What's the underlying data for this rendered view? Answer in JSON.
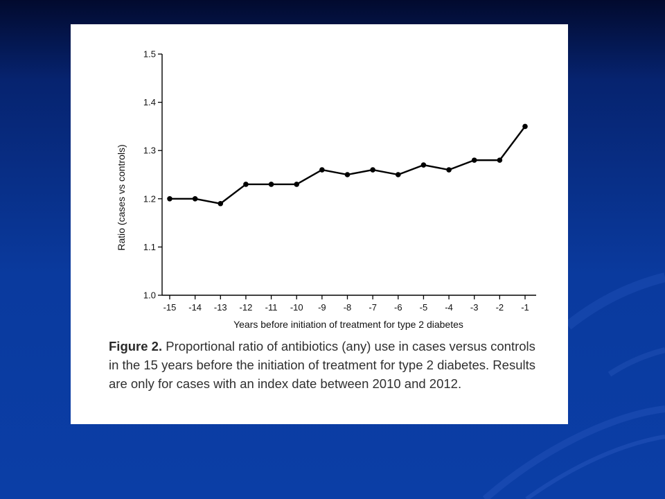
{
  "slide": {
    "background_top": "#020a2e",
    "background_bottom": "#0b3ea6"
  },
  "chart_data": {
    "type": "line",
    "xlabel": "Years before initiation of treatment for type 2 diabetes",
    "ylabel": "Ratio (cases vs controls)",
    "ylim": [
      1.0,
      1.5
    ],
    "yticks": [
      "1.0",
      "1.1",
      "1.2",
      "1.3",
      "1.4",
      "1.5"
    ],
    "categories": [
      "-15",
      "-14",
      "-13",
      "-12",
      "-11",
      "-10",
      "-9",
      "-8",
      "-7",
      "-6",
      "-5",
      "-4",
      "-3",
      "-2",
      "-1"
    ],
    "values": [
      1.2,
      1.2,
      1.19,
      1.23,
      1.23,
      1.23,
      1.26,
      1.25,
      1.26,
      1.25,
      1.27,
      1.26,
      1.28,
      1.28,
      1.35
    ],
    "grid": false,
    "line_color": "#000000"
  },
  "caption": {
    "lead": "Figure 2.",
    "text": "Proportional ratio of antibiotics (any) use in cases versus controls in the 15 years before the initiation of treatment for type 2 diabetes. Results are only for cases with an index date between 2010 and 2012."
  }
}
